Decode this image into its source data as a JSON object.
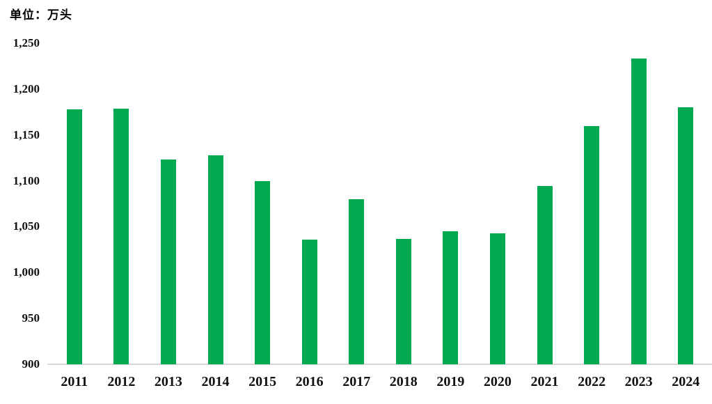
{
  "title": "单位：万头",
  "colors": {
    "bar": "#00A950",
    "axis_line": "#D9D9D9",
    "text": "#111111"
  },
  "chart_data": {
    "type": "bar",
    "title": "单位：万头",
    "categories": [
      "2011",
      "2012",
      "2013",
      "2014",
      "2015",
      "2016",
      "2017",
      "2018",
      "2019",
      "2020",
      "2021",
      "2022",
      "2023",
      "2024"
    ],
    "values": [
      1178,
      1179,
      1123,
      1128,
      1100,
      1036,
      1080,
      1037,
      1045,
      1043,
      1094,
      1160,
      1233,
      1180
    ],
    "xlabel": "",
    "ylabel": "万头",
    "ylim": [
      900,
      1250
    ],
    "yticks": [
      900,
      950,
      1000,
      1050,
      1100,
      1150,
      1200,
      1250
    ],
    "ytick_labels": [
      "900",
      "950",
      "1,000",
      "1,050",
      "1,100",
      "1,150",
      "1,200",
      "1,250"
    ],
    "grid": false,
    "legend": false
  }
}
